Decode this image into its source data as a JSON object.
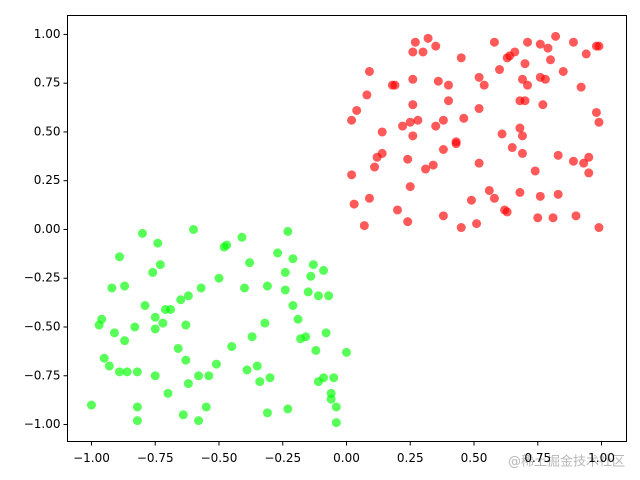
{
  "chart_data": {
    "type": "scatter",
    "xlim": [
      -1.094,
      1.098
    ],
    "ylim": [
      -1.087,
      1.097
    ],
    "xticks": [
      {
        "value": -1,
        "label": "−1.00"
      },
      {
        "value": -0.75,
        "label": "−0.75"
      },
      {
        "value": -0.5,
        "label": "−0.50"
      },
      {
        "value": -0.25,
        "label": "−0.25"
      },
      {
        "value": 0,
        "label": "0.00"
      },
      {
        "value": 0.25,
        "label": "0.25"
      },
      {
        "value": 0.5,
        "label": "0.50"
      },
      {
        "value": 0.75,
        "label": "0.75"
      },
      {
        "value": 1,
        "label": "1.00"
      }
    ],
    "yticks": [
      {
        "value": -1,
        "label": "−1.00"
      },
      {
        "value": -0.75,
        "label": "−0.75"
      },
      {
        "value": -0.5,
        "label": "−0.50"
      },
      {
        "value": -0.25,
        "label": "−0.25"
      },
      {
        "value": 0,
        "label": "0.00"
      },
      {
        "value": 0.25,
        "label": "0.25"
      },
      {
        "value": 0.5,
        "label": "0.50"
      },
      {
        "value": 0.75,
        "label": "0.75"
      },
      {
        "value": 1,
        "label": "1.00"
      }
    ],
    "alpha": 0.65,
    "series": [
      {
        "color": "#ff0000",
        "x": [
          0.32,
          0.27,
          0.35,
          0.45,
          0.26,
          0.18,
          0.09,
          0.08,
          0.04,
          0.02,
          0.02,
          0.03,
          0.07,
          0.09,
          0.11,
          0.12,
          0.14,
          0.14,
          0.19,
          0.26,
          0.26,
          0.25,
          0.22,
          0.26,
          0.28,
          0.3,
          0.36,
          0.4,
          0.35,
          0.38,
          0.4,
          0.46,
          0.43,
          0.43,
          0.38,
          0.34,
          0.24,
          0.31,
          0.25,
          0.2,
          0.24,
          0.38,
          0.45,
          0.49,
          0.51,
          0.52,
          0.52,
          0.52,
          0.54,
          0.58,
          0.6,
          0.63,
          0.64,
          0.66,
          0.69,
          0.71,
          0.71,
          0.7,
          0.76,
          0.79,
          0.8,
          0.78,
          0.77,
          0.76,
          0.7,
          0.68,
          0.68,
          0.69,
          0.65,
          0.61,
          0.69,
          0.74,
          0.56,
          0.58,
          0.62,
          0.63,
          0.68,
          0.75,
          0.76,
          0.81,
          0.83,
          0.82,
          0.89,
          0.94,
          0.98,
          0.99,
          0.85,
          0.92,
          0.98,
          0.99,
          0.95,
          0.93,
          0.89,
          0.83,
          0.95,
          0.9,
          0.99
        ],
        "values": [
          0.98,
          0.96,
          0.94,
          0.88,
          0.91,
          0.74,
          0.81,
          0.69,
          0.61,
          0.56,
          0.28,
          0.13,
          0.02,
          0.16,
          0.32,
          0.37,
          0.39,
          0.5,
          0.74,
          0.77,
          0.64,
          0.55,
          0.53,
          0.48,
          0.56,
          0.91,
          0.76,
          0.74,
          0.53,
          0.56,
          0.66,
          0.57,
          0.45,
          0.44,
          0.41,
          0.33,
          0.36,
          0.31,
          0.22,
          0.1,
          0.04,
          0.07,
          0.01,
          0.15,
          0.03,
          0.34,
          0.62,
          0.78,
          0.74,
          0.96,
          0.82,
          0.88,
          0.89,
          0.91,
          0.77,
          0.74,
          0.96,
          0.85,
          0.95,
          0.93,
          0.87,
          0.77,
          0.64,
          0.78,
          0.66,
          0.66,
          0.52,
          0.48,
          0.42,
          0.49,
          0.39,
          0.3,
          0.2,
          0.16,
          0.1,
          0.09,
          0.19,
          0.06,
          0.17,
          0.06,
          0.18,
          0.99,
          0.96,
          0.9,
          0.94,
          0.94,
          0.81,
          0.73,
          0.6,
          0.55,
          0.37,
          0.34,
          0.35,
          0.38,
          0.29,
          0.07,
          0.01
        ]
      },
      {
        "color": "#00ff00",
        "x": [
          -1.0,
          -0.97,
          -0.96,
          -0.95,
          -0.93,
          -0.92,
          -0.89,
          -0.91,
          -0.89,
          -0.87,
          -0.87,
          -0.86,
          -0.82,
          -0.82,
          -0.82,
          -0.83,
          -0.8,
          -0.79,
          -0.75,
          -0.74,
          -0.75,
          -0.72,
          -0.76,
          -0.73,
          -0.75,
          -0.71,
          -0.7,
          -0.69,
          -0.66,
          -0.65,
          -0.63,
          -0.64,
          -0.62,
          -0.63,
          -0.62,
          -0.6,
          -0.58,
          -0.58,
          -0.55,
          -0.57,
          -0.54,
          -0.51,
          -0.5,
          -0.48,
          -0.47,
          -0.45,
          -0.41,
          -0.38,
          -0.4,
          -0.39,
          -0.37,
          -0.34,
          -0.35,
          -0.32,
          -0.31,
          -0.31,
          -0.3,
          -0.27,
          -0.24,
          -0.24,
          -0.23,
          -0.21,
          -0.23,
          -0.21,
          -0.19,
          -0.18,
          -0.15,
          -0.16,
          -0.14,
          -0.13,
          -0.11,
          -0.12,
          -0.11,
          -0.09,
          -0.09,
          -0.08,
          -0.06,
          -0.07,
          -0.06,
          -0.05,
          -0.04,
          -0.04,
          0.0
        ],
        "values": [
          -0.9,
          -0.49,
          -0.46,
          -0.66,
          -0.7,
          -0.3,
          -0.73,
          -0.53,
          -0.14,
          -0.29,
          -0.57,
          -0.73,
          -0.73,
          -0.98,
          -0.91,
          -0.5,
          -0.02,
          -0.39,
          -0.51,
          -0.07,
          -0.45,
          -0.48,
          -0.22,
          -0.18,
          -0.75,
          -0.41,
          -0.84,
          -0.41,
          -0.61,
          -0.36,
          -0.67,
          -0.95,
          -0.79,
          -0.49,
          -0.34,
          0.0,
          -0.75,
          -0.98,
          -0.91,
          -0.3,
          -0.75,
          -0.69,
          -0.25,
          -0.09,
          -0.08,
          -0.6,
          -0.04,
          -0.17,
          -0.3,
          -0.72,
          -0.55,
          -0.78,
          -0.7,
          -0.48,
          -0.29,
          -0.94,
          -0.76,
          -0.12,
          -0.22,
          -0.31,
          -0.92,
          -0.39,
          -0.01,
          -0.15,
          -0.46,
          -0.56,
          -0.32,
          -0.55,
          -0.24,
          -0.18,
          -0.78,
          -0.62,
          -0.34,
          -0.21,
          -0.76,
          -0.53,
          -0.87,
          -0.34,
          -0.84,
          -0.76,
          -0.91,
          -0.99,
          -0.63
        ]
      }
    ],
    "watermark": "@稀土掘金技术社区"
  }
}
